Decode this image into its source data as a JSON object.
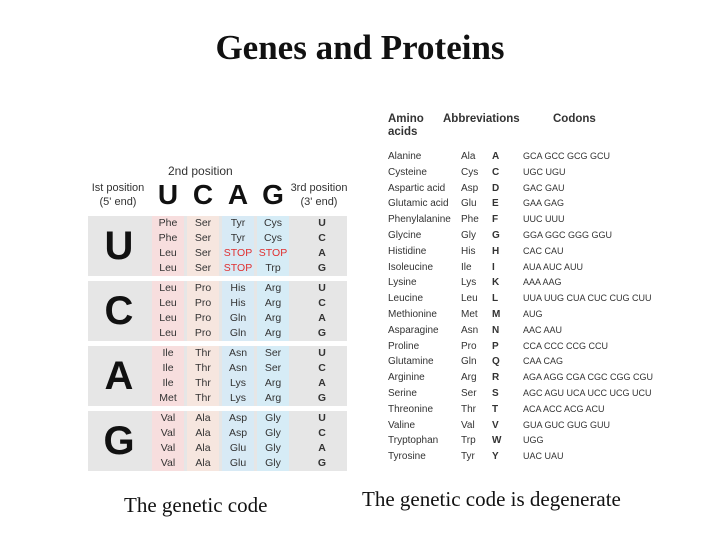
{
  "title": "Genes and Proteins",
  "captions": {
    "left": "The genetic code",
    "right": "The genetic code is degenerate"
  },
  "genetic_code": {
    "second_position_label": "2nd position",
    "first_position_label": [
      "Ist position",
      "(5' end)"
    ],
    "third_position_label": [
      "3rd position",
      "(3' end)"
    ],
    "bases": [
      "U",
      "C",
      "A",
      "G"
    ],
    "rows": [
      {
        "first": "U",
        "cols": [
          [
            "Phe",
            "Phe",
            "Leu",
            "Leu"
          ],
          [
            "Ser",
            "Ser",
            "Ser",
            "Ser"
          ],
          [
            "Tyr",
            "Tyr",
            "STOP",
            "STOP"
          ],
          [
            "Cys",
            "Cys",
            "STOP",
            "Trp"
          ]
        ]
      },
      {
        "first": "C",
        "cols": [
          [
            "Leu",
            "Leu",
            "Leu",
            "Leu"
          ],
          [
            "Pro",
            "Pro",
            "Pro",
            "Pro"
          ],
          [
            "His",
            "His",
            "Gln",
            "Gln"
          ],
          [
            "Arg",
            "Arg",
            "Arg",
            "Arg"
          ]
        ]
      },
      {
        "first": "A",
        "cols": [
          [
            "Ile",
            "Ile",
            "Ile",
            "Met"
          ],
          [
            "Thr",
            "Thr",
            "Thr",
            "Thr"
          ],
          [
            "Asn",
            "Asn",
            "Lys",
            "Lys"
          ],
          [
            "Ser",
            "Ser",
            "Arg",
            "Arg"
          ]
        ]
      },
      {
        "first": "G",
        "cols": [
          [
            "Val",
            "Val",
            "Val",
            "Val"
          ],
          [
            "Ala",
            "Ala",
            "Ala",
            "Ala"
          ],
          [
            "Asp",
            "Asp",
            "Glu",
            "Glu"
          ],
          [
            "Gly",
            "Gly",
            "Gly",
            "Gly"
          ]
        ]
      }
    ],
    "third": [
      "U",
      "C",
      "A",
      "G"
    ]
  },
  "amino_acids": {
    "headers": {
      "name": [
        "Amino",
        "acids"
      ],
      "abbr": "Abbreviations",
      "codons": "Codons"
    },
    "items": [
      {
        "name": "Alanine",
        "three": "Ala",
        "one": "A",
        "codons": "GCA GCC GCG GCU"
      },
      {
        "name": "Cysteine",
        "three": "Cys",
        "one": "C",
        "codons": "UGC UGU"
      },
      {
        "name": "Aspartic acid",
        "three": "Asp",
        "one": "D",
        "codons": "GAC GAU"
      },
      {
        "name": "Glutamic acid",
        "three": "Glu",
        "one": "E",
        "codons": "GAA GAG"
      },
      {
        "name": "Phenylalanine",
        "three": "Phe",
        "one": "F",
        "codons": "UUC UUU"
      },
      {
        "name": "Glycine",
        "three": "Gly",
        "one": "G",
        "codons": "GGA GGC GGG GGU"
      },
      {
        "name": "Histidine",
        "three": "His",
        "one": "H",
        "codons": "CAC CAU"
      },
      {
        "name": "Isoleucine",
        "three": "Ile",
        "one": "I",
        "codons": "AUA AUC AUU"
      },
      {
        "name": "Lysine",
        "three": "Lys",
        "one": "K",
        "codons": "AAA AAG"
      },
      {
        "name": "Leucine",
        "three": "Leu",
        "one": "L",
        "codons": "UUA UUG CUA CUC CUG CUU"
      },
      {
        "name": "Methionine",
        "three": "Met",
        "one": "M",
        "codons": "AUG"
      },
      {
        "name": "Asparagine",
        "three": "Asn",
        "one": "N",
        "codons": "AAC AAU"
      },
      {
        "name": "Proline",
        "three": "Pro",
        "one": "P",
        "codons": "CCA CCC CCG CCU"
      },
      {
        "name": "Glutamine",
        "three": "Gln",
        "one": "Q",
        "codons": "CAA CAG"
      },
      {
        "name": "Arginine",
        "three": "Arg",
        "one": "R",
        "codons": "AGA AGG CGA CGC CGG CGU"
      },
      {
        "name": "Serine",
        "three": "Ser",
        "one": "S",
        "codons": "AGC AGU UCA UCC UCG UCU"
      },
      {
        "name": "Threonine",
        "three": "Thr",
        "one": "T",
        "codons": "ACA ACC ACG ACU"
      },
      {
        "name": "Valine",
        "three": "Val",
        "one": "V",
        "codons": "GUA GUC GUG GUU"
      },
      {
        "name": "Tryptophan",
        "three": "Trp",
        "one": "W",
        "codons": "UGG"
      },
      {
        "name": "Tyrosine",
        "three": "Tyr",
        "one": "Y",
        "codons": "UAC UAU"
      }
    ]
  },
  "colors": {
    "stop": "#e03030"
  }
}
